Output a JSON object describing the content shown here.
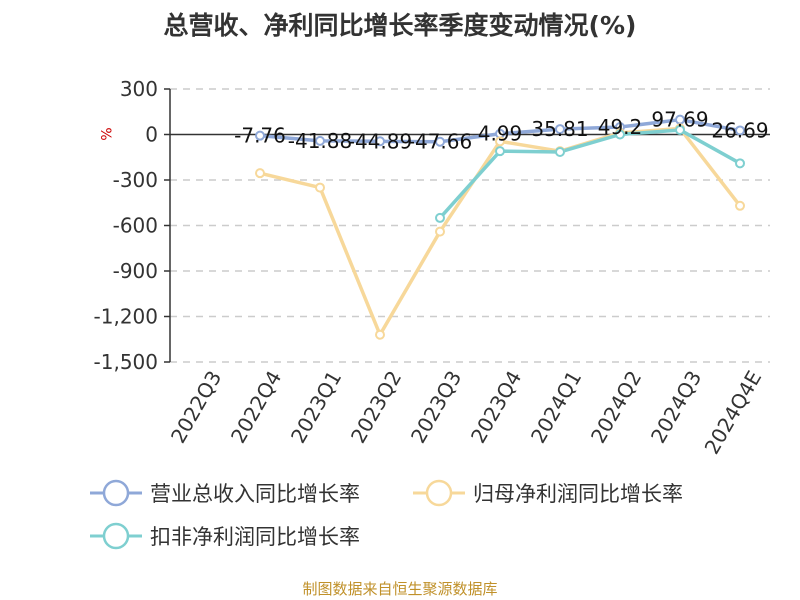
{
  "chart_data": {
    "type": "line",
    "title": "总营收、净利同比增长率季度变动情况(%)",
    "ylabel": "%",
    "xlabel": "",
    "categories": [
      "2022Q3",
      "2022Q4",
      "2023Q1",
      "2023Q2",
      "2023Q3",
      "2023Q4",
      "2024Q1",
      "2024Q2",
      "2024Q3",
      "2024Q4E"
    ],
    "ylim": [
      -1500,
      300
    ],
    "yticks": [
      300,
      0,
      -300,
      -600,
      -900,
      -1200,
      -1500
    ],
    "ytick_labels": [
      "300",
      "0",
      "-300",
      "-600",
      "-900",
      "-1,200",
      "-1,500"
    ],
    "grid": true,
    "legend_position": "bottom",
    "series": [
      {
        "name": "营业总收入同比增长率",
        "color": "#8fa8d8",
        "values": [
          null,
          -7.76,
          -41.88,
          -44.89,
          -47.66,
          4.99,
          35.81,
          49.2,
          97.69,
          26.69
        ],
        "labels": [
          "",
          "-7.76",
          "-41.88",
          "-44.89",
          "-47.66",
          "4.99",
          "35.81",
          "49.2",
          "97.69",
          "26.69"
        ]
      },
      {
        "name": "归母净利润同比增长率",
        "color": "#f7d89a",
        "values": [
          null,
          -255,
          -350,
          -1320,
          -640,
          -45,
          -110,
          10,
          40,
          -470
        ],
        "labels": []
      },
      {
        "name": "扣非净利润同比增长率",
        "color": "#7ecfd0",
        "values": [
          null,
          null,
          null,
          null,
          -550,
          -110,
          -115,
          0,
          30,
          -190
        ],
        "labels": []
      }
    ]
  },
  "source": "制图数据来自恒生聚源数据库"
}
